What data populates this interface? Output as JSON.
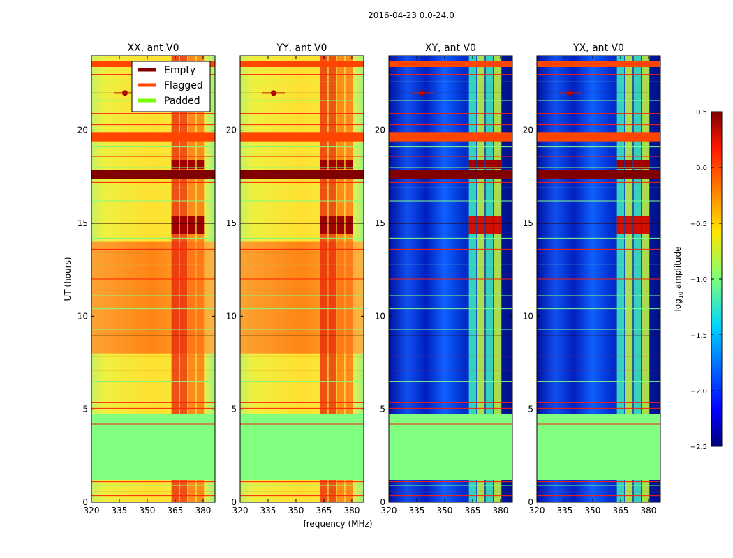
{
  "chart_data": {
    "type": "heatmap",
    "title": "2016-04-23 0.0-24.0",
    "xlabel": "frequency (MHz)",
    "ylabel": "UT (hours)",
    "xlim": [
      320,
      386.4
    ],
    "ylim": [
      0,
      24
    ],
    "xticks": [
      "320",
      "335",
      "350",
      "365",
      "380"
    ],
    "xtick_values": [
      320,
      335,
      350,
      365,
      380
    ],
    "yticks": [
      "0",
      "5",
      "10",
      "15",
      "20"
    ],
    "ytick_values": [
      0,
      5,
      10,
      15,
      20
    ],
    "panels": [
      {
        "title": "XX, ant V0",
        "kind": "auto"
      },
      {
        "title": "YY, ant V0",
        "kind": "auto"
      },
      {
        "title": "XY, ant V0",
        "kind": "cross"
      },
      {
        "title": "YX, ant V0",
        "kind": "cross"
      }
    ],
    "rfi_channels_mhz": [
      [
        363,
        367
      ],
      [
        367.5,
        371.5
      ],
      [
        372,
        376
      ],
      [
        376.5,
        380.5
      ]
    ],
    "high_amplitude_hours": [
      [
        8,
        14
      ]
    ],
    "bands": [
      {
        "type": "Padded",
        "from": 1.2,
        "to": 4.75
      },
      {
        "type": "Flagged",
        "from": 19.4,
        "to": 19.9
      },
      {
        "type": "Flagged",
        "from": 23.4,
        "to": 23.7
      },
      {
        "type": "Empty",
        "from": 17.4,
        "to": 17.85
      }
    ],
    "lines": [
      {
        "type": "Flagged",
        "h": 0.35
      },
      {
        "type": "Flagged",
        "h": 0.55
      },
      {
        "type": "Padded",
        "h": 0.9
      },
      {
        "type": "Flagged",
        "h": 1.1
      },
      {
        "type": "Flagged",
        "h": 4.2
      },
      {
        "type": "Padded",
        "h": 3.0
      },
      {
        "type": "Padded",
        "h": 1.9
      },
      {
        "type": "Flagged",
        "h": 5.05
      },
      {
        "type": "Flagged",
        "h": 5.35
      },
      {
        "type": "Padded",
        "h": 6.5
      },
      {
        "type": "Flagged",
        "h": 7.1
      },
      {
        "type": "Flagged",
        "h": 7.85
      },
      {
        "type": "Empty",
        "h": 8.97
      },
      {
        "type": "Padded",
        "h": 9.3
      },
      {
        "type": "Padded",
        "h": 10.4
      },
      {
        "type": "Padded",
        "h": 11.1
      },
      {
        "type": "Flagged",
        "h": 12.0
      },
      {
        "type": "Padded",
        "h": 12.8
      },
      {
        "type": "Flagged",
        "h": 13.6
      },
      {
        "type": "Padded",
        "h": 14.2
      },
      {
        "type": "Empty",
        "h": 15.0
      },
      {
        "type": "Padded",
        "h": 16.2
      },
      {
        "type": "Padded",
        "h": 16.9
      },
      {
        "type": "Flagged",
        "h": 17.2
      },
      {
        "type": "Padded",
        "h": 18.0
      },
      {
        "type": "Flagged",
        "h": 18.6
      },
      {
        "type": "Padded",
        "h": 19.1
      },
      {
        "type": "Flagged",
        "h": 20.3
      },
      {
        "type": "Flagged",
        "h": 20.9
      },
      {
        "type": "Padded",
        "h": 21.6
      },
      {
        "type": "Empty",
        "h": 22.0
      },
      {
        "type": "Padded",
        "h": 22.6
      },
      {
        "type": "Flagged",
        "h": 23.0
      }
    ],
    "legend": {
      "placement": "top-right of first panel",
      "entries": [
        {
          "label": "Empty",
          "color": "#800000"
        },
        {
          "label": "Flagged",
          "color": "#ff4500"
        },
        {
          "label": "Padded",
          "color": "#7cfc00"
        }
      ]
    },
    "colorbar": {
      "label_main": "log",
      "label_sub": "10",
      "label_rest": " amplitude",
      "range": [
        -2.5,
        0.5
      ],
      "ticks": [
        "0.5",
        "0.0",
        "−0.5",
        "−1.0",
        "−1.5",
        "−2.0",
        "−2.5"
      ],
      "tick_values": [
        0.5,
        0,
        -0.5,
        -1,
        -1.5,
        -2,
        -2.5
      ],
      "colormap": "jet"
    }
  }
}
